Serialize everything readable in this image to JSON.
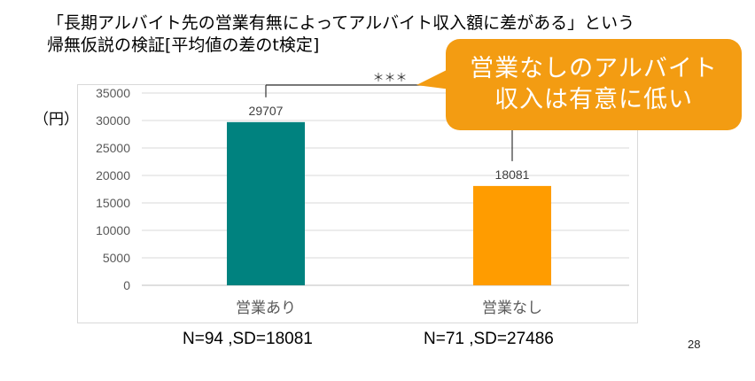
{
  "title": {
    "line1": "「長期アルバイト先の営業有無によってアルバイト収入額に差がある」という",
    "line2": "帰無仮説の検証[平均値の差のt検定]"
  },
  "unit_label": "（円）",
  "significance": "＊＊＊",
  "callout": {
    "line1": "営業なしのアルバイト",
    "line2": "収入は有意に低い"
  },
  "stats": {
    "left": "N=94 ,SD=18081",
    "right": "N=71 ,SD=27486"
  },
  "page_number": "28",
  "colors": {
    "bar_teal": "#00827f",
    "bar_orange": "#ff9c00",
    "callout": "#f39c12"
  },
  "chart_data": {
    "type": "bar",
    "categories": [
      "営業あり",
      "営業なし"
    ],
    "values": [
      29707,
      18081
    ],
    "data_labels": [
      "29707",
      "18081"
    ],
    "ylim": [
      0,
      35000
    ],
    "yticks": [
      0,
      5000,
      10000,
      15000,
      20000,
      25000,
      30000,
      35000
    ],
    "grid": true,
    "legend": "none"
  }
}
